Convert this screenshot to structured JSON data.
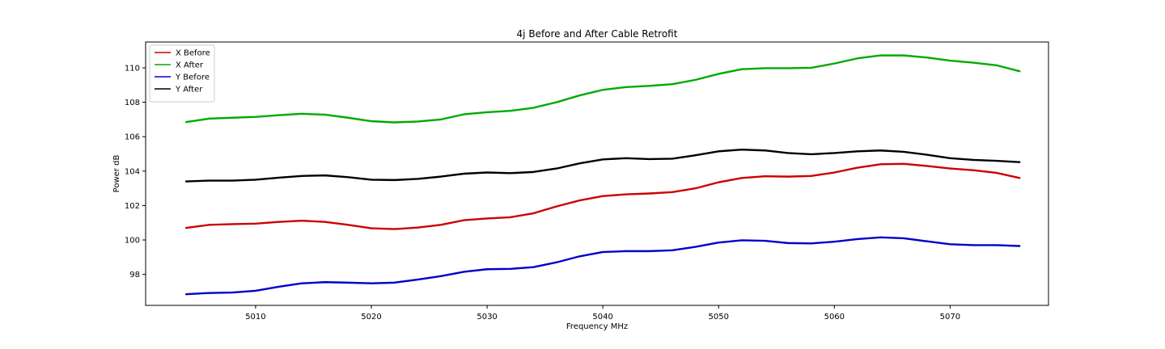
{
  "chart_data": {
    "type": "line",
    "title": "4j Before and After Cable Retrofit",
    "xlabel": "Frequency MHz",
    "ylabel": "Power dB",
    "xlim": [
      5000.5,
      5078.5
    ],
    "ylim": [
      96.2,
      111.5
    ],
    "xticks": [
      5010,
      5020,
      5030,
      5040,
      5050,
      5060,
      5070
    ],
    "yticks": [
      98,
      100,
      102,
      104,
      106,
      108,
      110
    ],
    "grid": false,
    "legend_position": "top-left",
    "series": [
      {
        "name": "X Before",
        "color": "#cc0000",
        "x": [
          5004,
          5006,
          5008,
          5010,
          5012,
          5014,
          5016,
          5018,
          5020,
          5022,
          5024,
          5026,
          5028,
          5030,
          5032,
          5034,
          5036,
          5038,
          5040,
          5042,
          5044,
          5046,
          5048,
          5050,
          5052,
          5054,
          5056,
          5058,
          5060,
          5062,
          5064,
          5066,
          5068,
          5070,
          5072,
          5074,
          5076
        ],
        "y": [
          100.7,
          100.88,
          100.92,
          100.95,
          101.05,
          101.12,
          101.05,
          100.88,
          100.68,
          100.63,
          100.72,
          100.88,
          101.15,
          101.25,
          101.32,
          101.55,
          101.95,
          102.3,
          102.55,
          102.65,
          102.7,
          102.78,
          103.0,
          103.35,
          103.6,
          103.7,
          103.68,
          103.72,
          103.92,
          104.2,
          104.4,
          104.42,
          104.3,
          104.15,
          104.05,
          103.9,
          103.6
        ]
      },
      {
        "name": "X After",
        "color": "#00aa00",
        "x": [
          5004,
          5006,
          5008,
          5010,
          5012,
          5014,
          5016,
          5018,
          5020,
          5022,
          5024,
          5026,
          5028,
          5030,
          5032,
          5034,
          5036,
          5038,
          5040,
          5042,
          5044,
          5046,
          5048,
          5050,
          5052,
          5054,
          5056,
          5058,
          5060,
          5062,
          5064,
          5066,
          5068,
          5070,
          5072,
          5074,
          5076
        ],
        "y": [
          106.85,
          107.05,
          107.1,
          107.15,
          107.25,
          107.33,
          107.28,
          107.1,
          106.9,
          106.83,
          106.88,
          107.0,
          107.3,
          107.42,
          107.5,
          107.68,
          108.0,
          108.4,
          108.72,
          108.88,
          108.95,
          109.05,
          109.3,
          109.65,
          109.92,
          109.98,
          109.98,
          110.0,
          110.25,
          110.55,
          110.72,
          110.72,
          110.6,
          110.42,
          110.3,
          110.15,
          109.8
        ]
      },
      {
        "name": "Y Before",
        "color": "#0000cc",
        "x": [
          5004,
          5006,
          5008,
          5010,
          5012,
          5014,
          5016,
          5018,
          5020,
          5022,
          5024,
          5026,
          5028,
          5030,
          5032,
          5034,
          5036,
          5038,
          5040,
          5042,
          5044,
          5046,
          5048,
          5050,
          5052,
          5054,
          5056,
          5058,
          5060,
          5062,
          5064,
          5066,
          5068,
          5070,
          5072,
          5074,
          5076
        ],
        "y": [
          96.85,
          96.92,
          96.95,
          97.05,
          97.28,
          97.48,
          97.55,
          97.52,
          97.48,
          97.52,
          97.7,
          97.9,
          98.15,
          98.3,
          98.32,
          98.42,
          98.7,
          99.05,
          99.3,
          99.35,
          99.35,
          99.4,
          99.6,
          99.85,
          99.98,
          99.95,
          99.82,
          99.8,
          99.9,
          100.05,
          100.15,
          100.1,
          99.92,
          99.75,
          99.7,
          99.7,
          99.65
        ]
      },
      {
        "name": "Y After",
        "color": "#000000",
        "x": [
          5004,
          5006,
          5008,
          5010,
          5012,
          5014,
          5016,
          5018,
          5020,
          5022,
          5024,
          5026,
          5028,
          5030,
          5032,
          5034,
          5036,
          5038,
          5040,
          5042,
          5044,
          5046,
          5048,
          5050,
          5052,
          5054,
          5056,
          5058,
          5060,
          5062,
          5064,
          5066,
          5068,
          5070,
          5072,
          5074,
          5076
        ],
        "y": [
          103.4,
          103.45,
          103.45,
          103.5,
          103.62,
          103.72,
          103.75,
          103.65,
          103.5,
          103.48,
          103.55,
          103.68,
          103.85,
          103.92,
          103.88,
          103.95,
          104.15,
          104.45,
          104.68,
          104.75,
          104.7,
          104.72,
          104.92,
          105.15,
          105.25,
          105.2,
          105.05,
          104.98,
          105.05,
          105.15,
          105.2,
          105.12,
          104.95,
          104.75,
          104.65,
          104.6,
          104.52
        ]
      }
    ]
  }
}
